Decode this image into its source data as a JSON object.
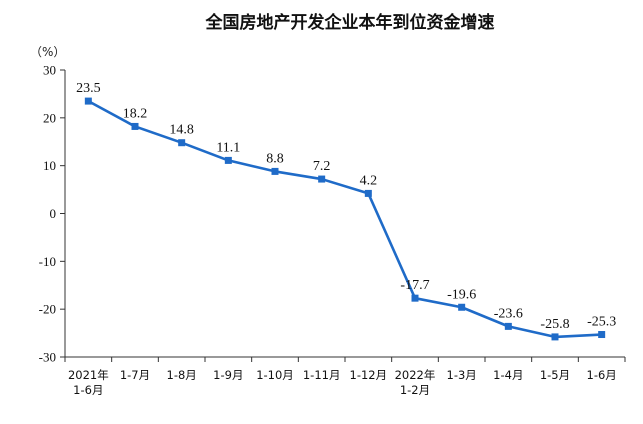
{
  "chart_data": {
    "type": "line",
    "title": "全国房地产开发企业本年到位资金增速",
    "ylabel": "（%）",
    "xlabel": "",
    "ylim": [
      -30,
      30
    ],
    "yticks": [
      30,
      20,
      10,
      0,
      -10,
      -20,
      -30
    ],
    "categories": [
      [
        "2021年",
        "1-6月"
      ],
      [
        "1-7月"
      ],
      [
        "1-8月"
      ],
      [
        "1-9月"
      ],
      [
        "1-10月"
      ],
      [
        "1-11月"
      ],
      [
        "1-12月"
      ],
      [
        "2022年",
        "1-2月"
      ],
      [
        "1-3月"
      ],
      [
        "1-4月"
      ],
      [
        "1-5月"
      ],
      [
        "1-6月"
      ]
    ],
    "series": [
      {
        "values": [
          23.5,
          18.2,
          14.8,
          11.1,
          8.8,
          7.2,
          4.2,
          -17.7,
          -19.6,
          -23.6,
          -25.8,
          -25.3
        ],
        "labels": [
          "23.5",
          "18.2",
          "14.8",
          "11.1",
          "8.8",
          "7.2",
          "4.2",
          "-17.7",
          "-19.6",
          "-23.6",
          "-25.8",
          "-25.3"
        ],
        "color": "#1f6bc8"
      }
    ],
    "grid": false,
    "legend": "none"
  }
}
